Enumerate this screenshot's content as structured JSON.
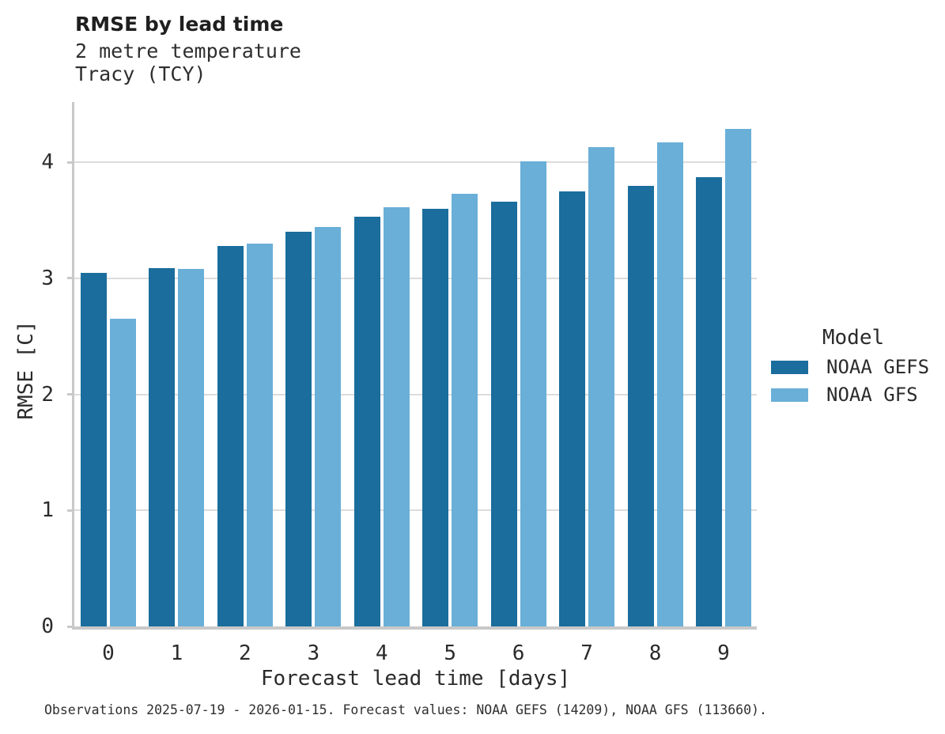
{
  "header": {
    "title": "RMSE by lead time",
    "subtitle1": "2 metre temperature",
    "subtitle2": "Tracy (TCY)"
  },
  "chart_data": {
    "type": "bar",
    "title": "RMSE by lead time",
    "subtitle": "2 metre temperature — Tracy (TCY)",
    "categories": [
      "0",
      "1",
      "2",
      "3",
      "4",
      "5",
      "6",
      "7",
      "8",
      "9"
    ],
    "series": [
      {
        "name": "NOAA GEFS",
        "color": "#1a6d9c",
        "values": [
          3.05,
          3.09,
          3.28,
          3.4,
          3.53,
          3.6,
          3.66,
          3.75,
          3.8,
          3.87
        ]
      },
      {
        "name": "NOAA GFS",
        "color": "#69afd8",
        "values": [
          2.65,
          3.08,
          3.3,
          3.44,
          3.61,
          3.73,
          4.01,
          4.13,
          4.17,
          4.29
        ]
      }
    ],
    "xlabel": "Forecast lead time [days]",
    "ylabel": "RMSE [C]",
    "ylim": [
      0,
      4.52
    ],
    "yticks": [
      0,
      1,
      2,
      3,
      4
    ],
    "grid": "horizontal",
    "legend": {
      "title": "Model",
      "position": "right"
    }
  },
  "footer": {
    "caption": "Observations 2025-07-19 - 2026-01-15. Forecast values: NOAA GEFS (14209), NOAA GFS (113660)."
  },
  "colors": {
    "grid": "#dcdcdc",
    "axis": "#c9c9c9",
    "gefs": "#1a6d9c",
    "gfs": "#69afd8"
  }
}
